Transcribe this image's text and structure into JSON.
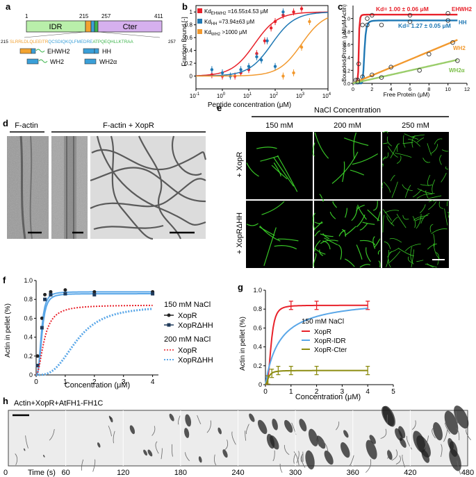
{
  "panels": {
    "a": {
      "label": "a",
      "domain": {
        "start": "1",
        "b1": "215",
        "b2": "257",
        "end": "411",
        "idr": "IDR",
        "cter": "Cter"
      },
      "seq_start": "215",
      "seq_end": "257",
      "seq_parts": [
        {
          "text": "SLRRLDLQLEEITR",
          "color": "#f0a030"
        },
        {
          "text": "QCSDIQKQLFMEDRE",
          "color": "#3a9fd8"
        },
        {
          "text": "ATPQEQHLLKTRAA",
          "color": "#3cb44b"
        }
      ],
      "constructs": [
        "EHWH2",
        "HH",
        "WH2",
        "WH2α"
      ]
    },
    "b": {
      "label": "b",
      "legend": [
        {
          "pre": "Kd",
          "sub": "EHWH2",
          "post": " =16.55±4.53 μM"
        },
        {
          "pre": "Kd",
          "sub": "HH",
          "post": " =73.94±63 μM"
        },
        {
          "pre": "Kd",
          "sub": "WH2",
          "post": " >1000 μM"
        }
      ],
      "xlabel": "Peptide concentration (μM)",
      "ylabel": "Fraction Bound [-]",
      "xticks": [
        "-1",
        "0",
        "1",
        "2",
        "3",
        "4"
      ],
      "yticks": [
        "0",
        "0.2",
        "0.4",
        "0.6",
        "0.8",
        "1"
      ]
    },
    "c": {
      "label": "c",
      "xlabel": "Free Protein (μM)",
      "ylabel": "Bounded Protein (μM/μM Actin)",
      "xticks": [
        "0",
        "2",
        "4",
        "6",
        "8",
        "10",
        "12"
      ],
      "yticks": [
        "0.0",
        "0.2",
        "0.4",
        "0.6",
        "0.8",
        "1.0"
      ],
      "kd1": "Kd= 1.00 ± 0.06 μM",
      "kd2": "Kd= 1.27 ± 0.05 μM",
      "series_labels": [
        "EHWH2",
        "HH",
        "WH2",
        "WH2α"
      ]
    },
    "d": {
      "label": "d",
      "col1": "F-actin",
      "col2": "F-actin + XopR"
    },
    "e": {
      "label": "e",
      "header": "NaCl Concentration",
      "cols": [
        "150 mM",
        "200 mM",
        "250 mM"
      ],
      "rows": [
        "+ XopR",
        "+ XopRΔHH"
      ]
    },
    "f": {
      "label": "f",
      "xlabel": "Concentration (μM)",
      "ylabel": "Actin in pellet (%)",
      "xticks": [
        "0",
        "1",
        "2",
        "3",
        "4"
      ],
      "yticks": [
        "0",
        "0.2",
        "0.4",
        "0.6",
        "0.8",
        "1.0"
      ],
      "legend_h1": "150 mM NaCl",
      "legend_h2": "200 mM NaCl",
      "legend": [
        "XopR",
        "XopRΔHH",
        "XopR",
        "XopRΔHH"
      ]
    },
    "g": {
      "label": "g",
      "xlabel": "Concentration (μM)",
      "ylabel": "Actin in pellet (%)",
      "xticks": [
        "0",
        "1",
        "2",
        "3",
        "4",
        "5"
      ],
      "yticks": [
        "0",
        "0.2",
        "0.4",
        "0.6",
        "0.8",
        "1.0"
      ],
      "legend_h": "150 mM NaCl",
      "legend": [
        "XopR",
        "XopR-IDR",
        "XopR-Cter"
      ]
    },
    "h": {
      "label": "h",
      "title": "Actin+XopR+AtFH1-FH1C",
      "time_label": "Time (s)",
      "times": [
        "0",
        "60",
        "120",
        "180",
        "240",
        "300",
        "360",
        "420",
        "480"
      ]
    }
  },
  "colors": {
    "red": "#e8212a",
    "blue": "#1f78b4",
    "orange": "#f2992e",
    "green": "#9acd6a",
    "lightblue": "#5aa7e8",
    "olive": "#8c8c10",
    "idr": "#b9efaa",
    "cter": "#d6b0ee",
    "micro_green": "#3ddc2a"
  },
  "chart_data": [
    {
      "panel": "b",
      "type": "scatter",
      "x_scale": "log10",
      "xlim": [
        0.1,
        10000
      ],
      "ylim": [
        -0.2,
        1.1
      ],
      "series": [
        {
          "name": "EHWH2",
          "color": "#e8212a",
          "kd": 16.55,
          "x": [
            0.4,
            1,
            3,
            5,
            10,
            20,
            40,
            70,
            100,
            200,
            500,
            1000
          ],
          "y": [
            0.02,
            0.0,
            0.0,
            0.05,
            0.1,
            0.35,
            0.55,
            0.75,
            0.85,
            0.95,
            1.0,
            1.05
          ]
        },
        {
          "name": "HH",
          "color": "#1f78b4",
          "kd": 73.94,
          "x": [
            0.4,
            1,
            2,
            5,
            10,
            20,
            30,
            50,
            100,
            200
          ],
          "y": [
            0.1,
            0.05,
            0.0,
            0.1,
            0.15,
            0.3,
            0.25,
            0.55,
            0.15,
            1.0
          ]
        },
        {
          "name": "WH2",
          "color": "#f2992e",
          "kd": 1000,
          "x": [
            200,
            500,
            1000,
            2000
          ],
          "y": [
            0.0,
            0.05,
            0.45,
            0.85
          ]
        }
      ]
    },
    {
      "panel": "c",
      "type": "scatter",
      "xlim": [
        0,
        12
      ],
      "ylim": [
        0,
        1.2
      ],
      "series": [
        {
          "name": "EHWH2",
          "color": "#e8212a",
          "x": [
            0.3,
            0.6,
            1,
            1.5,
            2,
            6,
            10
          ],
          "y": [
            0.05,
            0.3,
            0.9,
            1.0,
            1.05,
            1.05,
            1.08
          ]
        },
        {
          "name": "HH",
          "color": "#1f78b4",
          "x": [
            0.5,
            1,
            1.5,
            3,
            6,
            10
          ],
          "y": [
            0.05,
            0.1,
            0.9,
            0.9,
            0.95,
            0.97
          ]
        },
        {
          "name": "WH2",
          "color": "#f2992e",
          "x": [
            0.5,
            2,
            4,
            8,
            10.5
          ],
          "y": [
            0.05,
            0.13,
            0.25,
            0.45,
            0.63
          ]
        },
        {
          "name": "WH2α",
          "color": "#9acd6a",
          "x": [
            0.5,
            3,
            7,
            11
          ],
          "y": [
            0.02,
            0.09,
            0.2,
            0.35
          ]
        }
      ]
    },
    {
      "panel": "f",
      "type": "line",
      "xlim": [
        0,
        4.2
      ],
      "ylim": [
        0,
        1.0
      ],
      "series": [
        {
          "name": "XopR",
          "color": "#222222",
          "x": [
            0.05,
            0.2,
            0.3,
            0.5,
            1,
            2,
            4
          ],
          "y": [
            0.2,
            0.6,
            0.85,
            0.88,
            0.9,
            0.88,
            0.88
          ]
        },
        {
          "name": "XopRΔHH",
          "color": "#1f3a5a",
          "x": [
            0.05,
            0.2,
            0.3,
            0.5,
            1,
            2,
            4
          ],
          "y": [
            0.1,
            0.5,
            0.8,
            0.85,
            0.86,
            0.85,
            0.86
          ]
        },
        {
          "name": "XopR",
          "color": "#e8212a",
          "x": [
            0.05,
            0.2,
            0.4,
            0.6,
            1,
            2,
            3,
            4
          ],
          "y": [
            0.05,
            0.4,
            0.6,
            0.7,
            0.73,
            0.74,
            0.74,
            0.74
          ]
        },
        {
          "name": "XopRΔHH",
          "color": "#5aa7e8",
          "x": [
            0.1,
            0.3,
            0.6,
            1,
            1.5,
            2,
            2.5,
            3,
            3.5,
            4
          ],
          "y": [
            0.02,
            0.05,
            0.1,
            0.3,
            0.5,
            0.6,
            0.65,
            0.68,
            0.7,
            0.71
          ]
        }
      ]
    },
    {
      "panel": "g",
      "type": "line",
      "xlim": [
        0,
        5
      ],
      "ylim": [
        0,
        1.0
      ],
      "series": [
        {
          "name": "XopR",
          "color": "#e8212a",
          "x": [
            0.1,
            0.25,
            0.5,
            1,
            2,
            4
          ],
          "y": [
            0.1,
            0.6,
            0.82,
            0.84,
            0.84,
            0.84
          ]
        },
        {
          "name": "XopR-IDR",
          "color": "#5aa7e8",
          "x": [
            0.1,
            0.25,
            0.5,
            1,
            2,
            4
          ],
          "y": [
            0.05,
            0.2,
            0.4,
            0.6,
            0.8,
            0.88
          ]
        },
        {
          "name": "XopR-Cter",
          "color": "#8c8c10",
          "x": [
            0.1,
            0.25,
            0.5,
            1,
            2,
            4
          ],
          "y": [
            0.05,
            0.12,
            0.15,
            0.15,
            0.15,
            0.15
          ]
        }
      ]
    }
  ]
}
